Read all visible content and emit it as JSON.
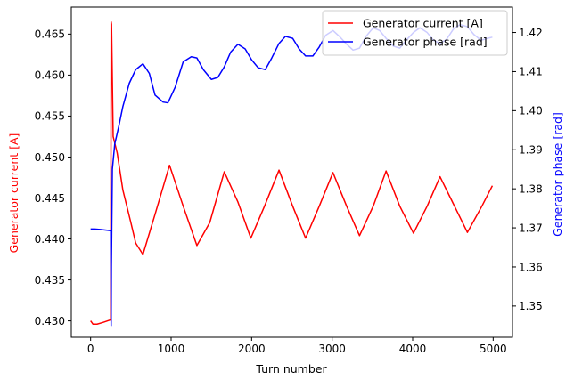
{
  "chart_data": {
    "type": "line",
    "xlabel": "Turn number",
    "ylabel_left": "Generator current [A]",
    "ylabel_right": "Generator phase [rad]",
    "xlim": [
      -240,
      5240
    ],
    "ylim_left": [
      0.428,
      0.4683
    ],
    "ylim_right": [
      1.342,
      1.4265
    ],
    "x_ticks": [
      0,
      1000,
      2000,
      3000,
      4000,
      5000
    ],
    "x_tick_labels": [
      "0",
      "1000",
      "2000",
      "3000",
      "4000",
      "5000"
    ],
    "y_left_ticks": [
      0.43,
      0.435,
      0.44,
      0.445,
      0.45,
      0.455,
      0.46,
      0.465
    ],
    "y_left_tick_labels": [
      "0.430",
      "0.435",
      "0.440",
      "0.445",
      "0.450",
      "0.455",
      "0.460",
      "0.465"
    ],
    "y_right_ticks": [
      1.35,
      1.36,
      1.37,
      1.38,
      1.39,
      1.4,
      1.41,
      1.42
    ],
    "y_right_tick_labels": [
      "1.35",
      "1.36",
      "1.37",
      "1.38",
      "1.39",
      "1.40",
      "1.41",
      "1.42"
    ],
    "grid": false,
    "legend_position": "top-right",
    "colors": {
      "current": "#ff0000",
      "phase": "#0000ff",
      "axis": "#000000"
    },
    "series": [
      {
        "name": "Generator current [A]",
        "axis": "left",
        "x": [
          0,
          30,
          80,
          150,
          240,
          250,
          255,
          260,
          280,
          330,
          400,
          500,
          560,
          650,
          800,
          980,
          1150,
          1320,
          1480,
          1660,
          1830,
          1990,
          2160,
          2340,
          2510,
          2670,
          2840,
          3010,
          3180,
          3340,
          3510,
          3670,
          3840,
          4010,
          4180,
          4340,
          4520,
          4680,
          4860,
          4990
        ],
        "y": [
          0.43,
          0.4296,
          0.4296,
          0.4298,
          0.4301,
          0.4301,
          0.4665,
          0.4662,
          0.4525,
          0.4505,
          0.446,
          0.442,
          0.4395,
          0.4381,
          0.443,
          0.449,
          0.444,
          0.4392,
          0.442,
          0.4482,
          0.4445,
          0.4401,
          0.444,
          0.4484,
          0.444,
          0.4401,
          0.444,
          0.4481,
          0.444,
          0.4404,
          0.444,
          0.4483,
          0.444,
          0.4407,
          0.444,
          0.4476,
          0.444,
          0.4408,
          0.444,
          0.4465
        ]
      },
      {
        "name": "Generator phase [rad]",
        "axis": "right",
        "x": [
          0,
          50,
          120,
          240,
          250,
          255,
          258,
          270,
          300,
          350,
          400,
          480,
          560,
          650,
          730,
          800,
          900,
          960,
          1050,
          1150,
          1250,
          1320,
          1400,
          1500,
          1580,
          1660,
          1740,
          1830,
          1920,
          2000,
          2080,
          2170,
          2250,
          2340,
          2420,
          2510,
          2590,
          2670,
          2760,
          2840,
          2920,
          3010,
          3090,
          3180,
          3260,
          3340,
          3420,
          3510,
          3590,
          3670,
          3760,
          3840,
          3920,
          4010,
          4090,
          4180,
          4260,
          4340,
          4420,
          4510,
          4590,
          4680,
          4760,
          4850,
          4930,
          4990
        ],
        "y": [
          1.3697,
          1.3697,
          1.3696,
          1.3693,
          1.3693,
          1.345,
          1.36,
          1.385,
          1.3915,
          1.396,
          1.401,
          1.407,
          1.4105,
          1.412,
          1.4095,
          1.404,
          1.4022,
          1.402,
          1.406,
          1.4125,
          1.4138,
          1.4135,
          1.4105,
          1.408,
          1.4085,
          1.4112,
          1.415,
          1.417,
          1.4158,
          1.413,
          1.411,
          1.4105,
          1.4135,
          1.4172,
          1.419,
          1.4185,
          1.4158,
          1.414,
          1.414,
          1.4163,
          1.4193,
          1.4205,
          1.419,
          1.417,
          1.4155,
          1.416,
          1.419,
          1.4212,
          1.4205,
          1.4185,
          1.4165,
          1.416,
          1.418,
          1.42,
          1.4212,
          1.42,
          1.418,
          1.4172,
          1.4182,
          1.421,
          1.422,
          1.4215,
          1.4195,
          1.418,
          1.4185,
          1.4188
        ]
      }
    ]
  }
}
